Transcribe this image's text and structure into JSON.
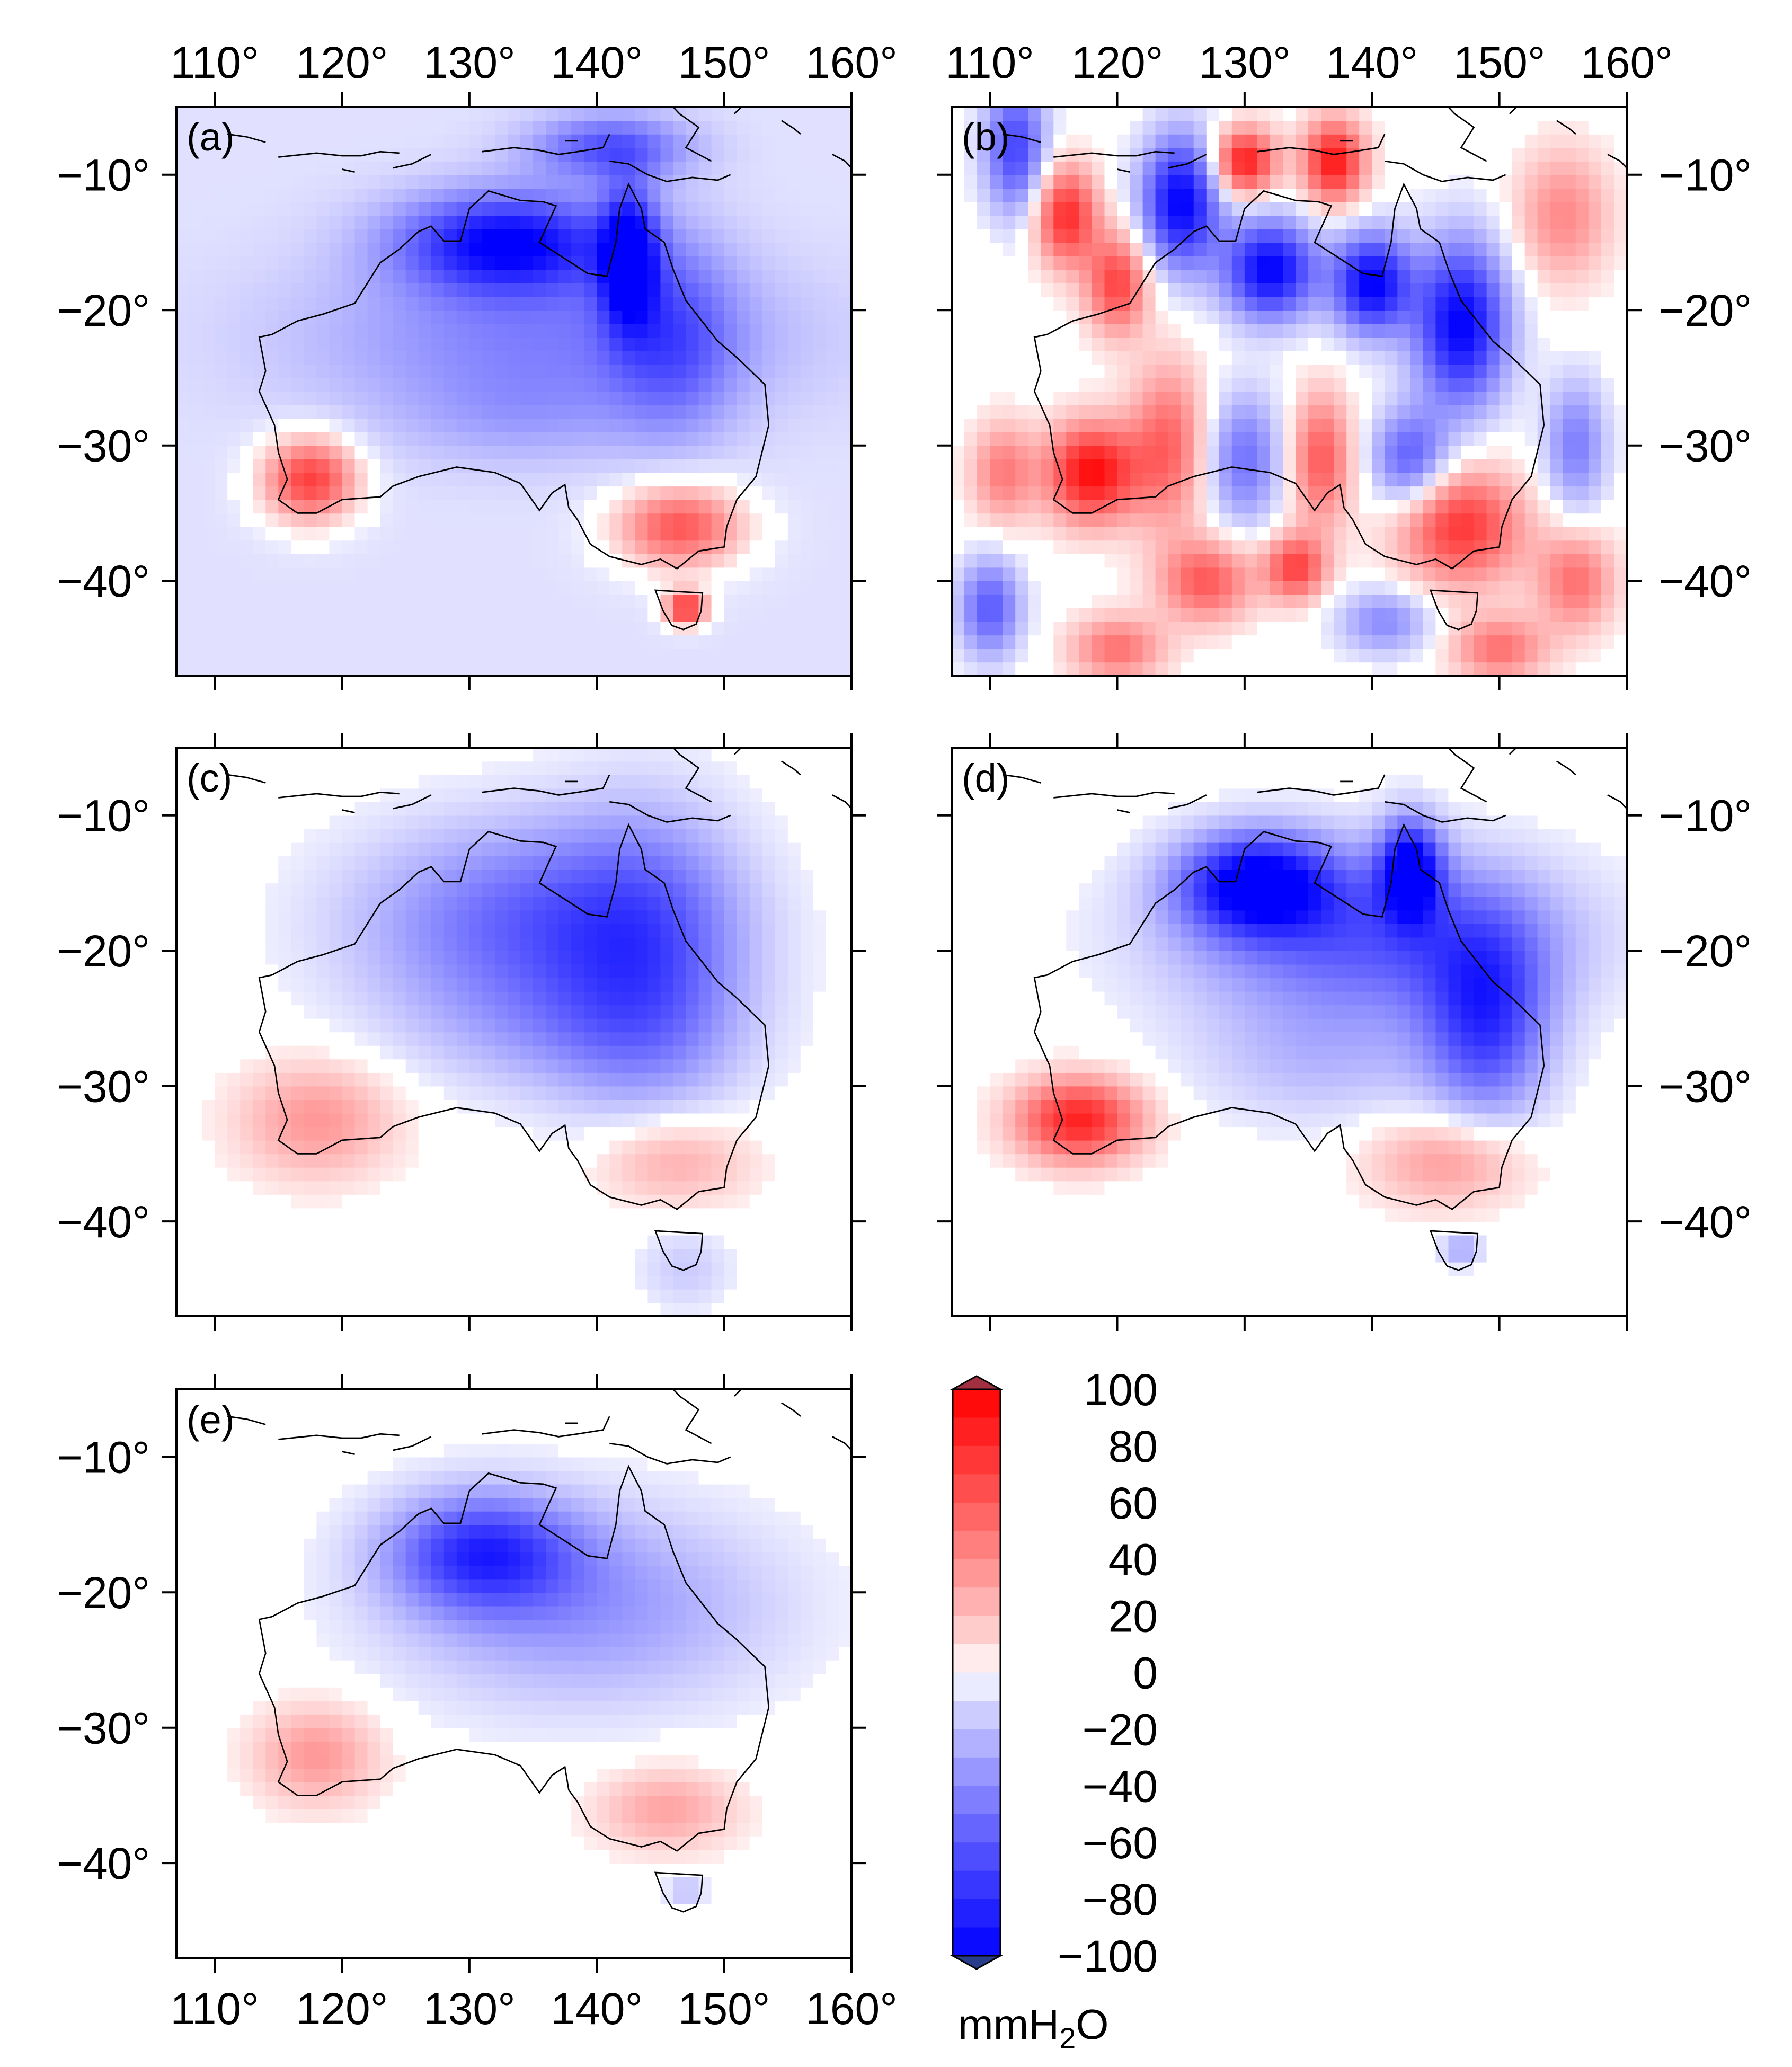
{
  "chart_data": [
    {
      "type": "heatmap",
      "panel_label": "(a)",
      "xlim": [
        107,
        160
      ],
      "ylim": [
        -47,
        -5
      ],
      "x_ticks": [
        110,
        120,
        130,
        140,
        150,
        160
      ],
      "y_ticks": [
        -10,
        -20,
        -30,
        -40
      ],
      "x_tick_labels": [
        "110°",
        "120°",
        "130°",
        "140°",
        "150°",
        "160°"
      ],
      "y_tick_labels": [
        "−10°",
        "−20°",
        "−30°",
        "−40°"
      ],
      "background": -8,
      "blobs": [
        {
          "lon": 133,
          "lat": -15,
          "rx": 7,
          "ry": 3,
          "v": -90
        },
        {
          "lon": 142.5,
          "lat": -16,
          "rx": 1.8,
          "ry": 4,
          "v": -95
        },
        {
          "lon": 136,
          "lat": -22,
          "rx": 15,
          "ry": 5,
          "v": -35
        },
        {
          "lon": 146,
          "lat": -22,
          "rx": 4,
          "ry": 6,
          "v": -40
        },
        {
          "lon": 117.5,
          "lat": -32.5,
          "rx": 3,
          "ry": 2.5,
          "v": 80
        },
        {
          "lon": 146.5,
          "lat": -36,
          "rx": 4,
          "ry": 2.5,
          "v": 70
        },
        {
          "lon": 147,
          "lat": -42,
          "rx": 1.3,
          "ry": 1,
          "v": 90
        },
        {
          "lon": 141,
          "lat": -8,
          "rx": 5,
          "ry": 2,
          "v": -55
        },
        {
          "lon": 134,
          "lat": -28,
          "rx": 8,
          "ry": 3,
          "v": -15
        }
      ]
    },
    {
      "type": "heatmap",
      "panel_label": "(b)",
      "xlim": [
        107,
        160
      ],
      "ylim": [
        -47,
        -5
      ],
      "x_ticks": [
        110,
        120,
        130,
        140,
        150,
        160
      ],
      "y_ticks": [
        -10,
        -20,
        -30,
        -40
      ],
      "x_tick_labels": [
        "110°",
        "120°",
        "130°",
        "140°",
        "150°",
        "160°"
      ],
      "y_tick_labels": [
        "−10°",
        "−20°",
        "−30°",
        "−40°"
      ],
      "background": 0,
      "blobs": [
        {
          "lon": 112,
          "lat": -8,
          "rx": 2,
          "ry": 4,
          "v": -70
        },
        {
          "lon": 116,
          "lat": -13,
          "rx": 2,
          "ry": 3,
          "v": 80
        },
        {
          "lon": 120,
          "lat": -18,
          "rx": 2,
          "ry": 3,
          "v": 70
        },
        {
          "lon": 125,
          "lat": -12,
          "rx": 2.5,
          "ry": 4,
          "v": -100
        },
        {
          "lon": 130,
          "lat": -9,
          "rx": 2,
          "ry": 2,
          "v": 90
        },
        {
          "lon": 132,
          "lat": -17,
          "rx": 3,
          "ry": 3,
          "v": -100
        },
        {
          "lon": 137,
          "lat": -9,
          "rx": 2,
          "ry": 2.5,
          "v": 90
        },
        {
          "lon": 140,
          "lat": -18,
          "rx": 2.5,
          "ry": 3,
          "v": -100
        },
        {
          "lon": 147,
          "lat": -21,
          "rx": 3,
          "ry": 5,
          "v": -100
        },
        {
          "lon": 118,
          "lat": -32,
          "rx": 3,
          "ry": 3,
          "v": 95
        },
        {
          "lon": 111,
          "lat": -32,
          "rx": 2,
          "ry": 3,
          "v": 45
        },
        {
          "lon": 124,
          "lat": -30,
          "rx": 2.5,
          "ry": 5,
          "v": 55
        },
        {
          "lon": 130,
          "lat": -31,
          "rx": 2.5,
          "ry": 4,
          "v": -50
        },
        {
          "lon": 136,
          "lat": -31,
          "rx": 2,
          "ry": 4,
          "v": 60
        },
        {
          "lon": 143,
          "lat": -31,
          "rx": 2.5,
          "ry": 3,
          "v": -60
        },
        {
          "lon": 147,
          "lat": -36,
          "rx": 4,
          "ry": 3.5,
          "v": 75
        },
        {
          "lon": 127,
          "lat": -40,
          "rx": 3,
          "ry": 2.5,
          "v": 60
        },
        {
          "lon": 134,
          "lat": -39,
          "rx": 2,
          "ry": 2,
          "v": 70
        },
        {
          "lon": 141,
          "lat": -43,
          "rx": 3,
          "ry": 2,
          "v": -40
        },
        {
          "lon": 110,
          "lat": -42,
          "rx": 2,
          "ry": 3,
          "v": -60
        },
        {
          "lon": 155,
          "lat": -13,
          "rx": 3,
          "ry": 4,
          "v": 40
        },
        {
          "lon": 156,
          "lat": -30,
          "rx": 2,
          "ry": 4,
          "v": -45
        },
        {
          "lon": 156,
          "lat": -40,
          "rx": 2.5,
          "ry": 3,
          "v": 50
        },
        {
          "lon": 150,
          "lat": -45,
          "rx": 3,
          "ry": 2,
          "v": 50
        },
        {
          "lon": 120,
          "lat": -45,
          "rx": 3,
          "ry": 2,
          "v": 50
        }
      ]
    },
    {
      "type": "heatmap",
      "panel_label": "(c)",
      "xlim": [
        107,
        160
      ],
      "ylim": [
        -47,
        -5
      ],
      "x_ticks": [
        110,
        120,
        130,
        140,
        150,
        160
      ],
      "y_ticks": [
        -10,
        -20,
        -30,
        -40
      ],
      "x_tick_labels": [
        "110°",
        "120°",
        "130°",
        "140°",
        "150°",
        "160°"
      ],
      "y_tick_labels": [
        "−10°",
        "−20°",
        "−30°",
        "−40°"
      ],
      "background": 0,
      "blobs": [
        {
          "lon": 135,
          "lat": -18,
          "rx": 11,
          "ry": 6,
          "v": -55
        },
        {
          "lon": 144,
          "lat": -21,
          "rx": 6,
          "ry": 9,
          "v": -45
        },
        {
          "lon": 118,
          "lat": -32.5,
          "rx": 5,
          "ry": 3.5,
          "v": 35
        },
        {
          "lon": 146,
          "lat": -35.5,
          "rx": 5,
          "ry": 2.8,
          "v": 30
        },
        {
          "lon": 147,
          "lat": -43.5,
          "rx": 3,
          "ry": 2.5,
          "v": -15
        },
        {
          "lon": 138,
          "lat": -26,
          "rx": 10,
          "ry": 4,
          "v": -20
        }
      ]
    },
    {
      "type": "heatmap",
      "panel_label": "(d)",
      "xlim": [
        107,
        160
      ],
      "ylim": [
        -47,
        -5
      ],
      "x_ticks": [
        110,
        120,
        130,
        140,
        150,
        160
      ],
      "y_ticks": [
        -10,
        -20,
        -30,
        -40
      ],
      "x_tick_labels": [
        "110°",
        "120°",
        "130°",
        "140°",
        "150°",
        "160°"
      ],
      "y_tick_labels": [
        "−10°",
        "−20°",
        "−30°",
        "−40°"
      ],
      "background": 0,
      "blobs": [
        {
          "lon": 131,
          "lat": -15,
          "rx": 5,
          "ry": 3,
          "v": -100
        },
        {
          "lon": 143,
          "lat": -14,
          "rx": 2,
          "ry": 3,
          "v": -100
        },
        {
          "lon": 140,
          "lat": -19,
          "rx": 12,
          "ry": 5,
          "v": -60
        },
        {
          "lon": 149,
          "lat": -25,
          "rx": 4,
          "ry": 6,
          "v": -70
        },
        {
          "lon": 117,
          "lat": -32.5,
          "rx": 4,
          "ry": 2.5,
          "v": 85
        },
        {
          "lon": 146,
          "lat": -35.5,
          "rx": 5,
          "ry": 2.8,
          "v": 35
        },
        {
          "lon": 136,
          "lat": -28,
          "rx": 8,
          "ry": 4,
          "v": -20
        },
        {
          "lon": 147,
          "lat": -42,
          "rx": 1.3,
          "ry": 1,
          "v": -30
        }
      ]
    },
    {
      "type": "heatmap",
      "panel_label": "(e)",
      "xlim": [
        107,
        160
      ],
      "ylim": [
        -47,
        -5
      ],
      "x_ticks": [
        110,
        120,
        130,
        140,
        150,
        160
      ],
      "y_ticks": [
        -10,
        -20,
        -30,
        -40
      ],
      "x_tick_labels": [
        "110°",
        "120°",
        "130°",
        "140°",
        "150°",
        "160°"
      ],
      "y_tick_labels": [
        "−10°",
        "−20°",
        "−30°",
        "−40°"
      ],
      "background": 0,
      "blobs": [
        {
          "lon": 131,
          "lat": -17,
          "rx": 6,
          "ry": 3.5,
          "v": -70
        },
        {
          "lon": 139,
          "lat": -21,
          "rx": 12,
          "ry": 6,
          "v": -35
        },
        {
          "lon": 118,
          "lat": -32,
          "rx": 4,
          "ry": 3,
          "v": 35
        },
        {
          "lon": 145.5,
          "lat": -36,
          "rx": 4.5,
          "ry": 2.5,
          "v": 30
        },
        {
          "lon": 147,
          "lat": -42,
          "rx": 1.3,
          "ry": 1,
          "v": -20
        }
      ]
    },
    {
      "type": "colorbar",
      "unit_label": "mmH2O",
      "range": [
        -100,
        100
      ],
      "tick_values": [
        100,
        80,
        60,
        40,
        20,
        0,
        -20,
        -40,
        -60,
        -80,
        -100
      ],
      "tick_labels": [
        "100",
        "80",
        "60",
        "40",
        "20",
        "0",
        "−20",
        "−40",
        "−60",
        "−80",
        "−100"
      ],
      "over_color": "#a03040",
      "under_color": "#283c8c"
    }
  ],
  "colors": {
    "strong_red": "#ff0000",
    "strong_blue": "#0000ff",
    "neutral": "#ffffff",
    "coast": "#000000"
  },
  "units": {
    "text_prefix": "mmH",
    "sub": "2",
    "suffix": "O"
  }
}
